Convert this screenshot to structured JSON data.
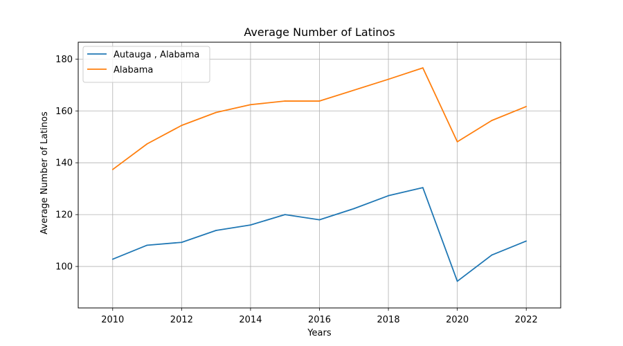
{
  "chart_data": {
    "type": "line",
    "title": "Average Number of Latinos",
    "xlabel": "Years",
    "ylabel": "Average Number of Latinos",
    "x": [
      2010,
      2011,
      2012,
      2013,
      2014,
      2015,
      2016,
      2017,
      2018,
      2019,
      2020,
      2021,
      2022
    ],
    "series": [
      {
        "name": "Autauga , Alabama",
        "color": "#1f77b4",
        "values": [
          102.8,
          108.2,
          109.3,
          113.9,
          116.0,
          120.0,
          118.0,
          122.3,
          127.3,
          130.4,
          94.3,
          104.4,
          109.8
        ]
      },
      {
        "name": "Alabama",
        "color": "#ff7f0e",
        "values": [
          137.4,
          147.3,
          154.4,
          159.4,
          162.4,
          163.8,
          163.8,
          168.0,
          172.2,
          176.6,
          148.1,
          156.3,
          161.7
        ]
      }
    ],
    "xlim": [
      2009,
      2023
    ],
    "ylim": [
      84,
      186.5
    ],
    "xticks": [
      "2010",
      "2012",
      "2014",
      "2016",
      "2018",
      "2020",
      "2022"
    ],
    "yticks": [
      "100",
      "120",
      "140",
      "160",
      "180"
    ],
    "grid": true,
    "legend_position": "top-left"
  }
}
